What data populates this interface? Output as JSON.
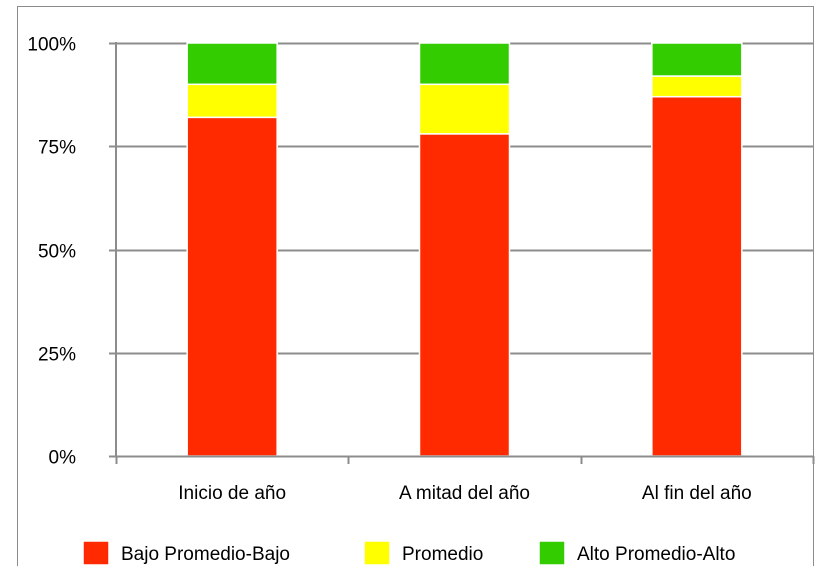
{
  "chart_data": {
    "type": "bar",
    "stacked": true,
    "percent": true,
    "categories": [
      "Inicio de año",
      "A mitad del año",
      "Al fin del año"
    ],
    "series": [
      {
        "name": "Bajo Promedio-Bajo",
        "values": [
          82,
          78,
          87
        ],
        "color": "#FF2A00"
      },
      {
        "name": "Promedio",
        "values": [
          8,
          12,
          5
        ],
        "color": "#FFFF00"
      },
      {
        "name": "Alto Promedio-Alto",
        "values": [
          10,
          10,
          8
        ],
        "color": "#33CC00"
      }
    ],
    "y_ticks": [
      "0%",
      "25%",
      "50%",
      "75%",
      "100%"
    ],
    "ylim": [
      0,
      100
    ],
    "grid": true,
    "legend_position": "bottom",
    "title": "",
    "xlabel": "",
    "ylabel": ""
  }
}
